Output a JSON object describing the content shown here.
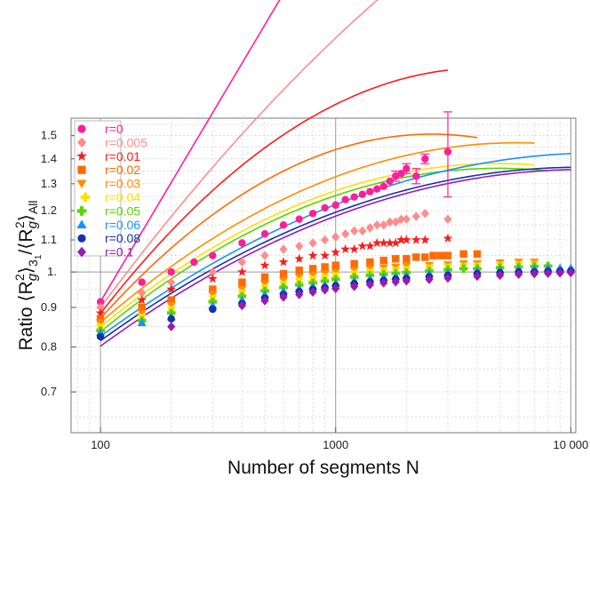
{
  "chart_data": {
    "type": "scatter",
    "title": "",
    "xlabel": "Number of segments N",
    "ylabel": {
      "prefix": "Ratio ⟨R",
      "g1": "g",
      "sup1": "2",
      "mid1": "⟩",
      "sub31": "3",
      "sub31b": "1",
      "mid2": "/⟨R",
      "g2": "g",
      "sup2": "2",
      "mid3": "⟩",
      "suball": "All"
    },
    "x_scale": "log",
    "y_scale": "log",
    "xlim": [
      75,
      10500
    ],
    "ylim": [
      0.62,
      1.58
    ],
    "x_ticks": [
      {
        "value": 100,
        "label": "100"
      },
      {
        "value": 1000,
        "label": "1000"
      },
      {
        "value": 10000,
        "label": "10 000"
      }
    ],
    "y_ticks": [
      {
        "value": 0.7,
        "label": "0.7"
      },
      {
        "value": 0.8,
        "label": "0.8"
      },
      {
        "value": 0.9,
        "label": "0.9"
      },
      {
        "value": 1.0,
        "label": "1."
      },
      {
        "value": 1.1,
        "label": "1.1"
      },
      {
        "value": 1.2,
        "label": "1.2"
      },
      {
        "value": 1.3,
        "label": "1.3"
      },
      {
        "value": 1.4,
        "label": "1.4"
      },
      {
        "value": 1.5,
        "label": "1.5"
      }
    ],
    "grid": true,
    "legend_position": "top-left",
    "series": [
      {
        "name": "r=0",
        "color": "#ff1e9a",
        "marker": "circle",
        "N_max": 3000,
        "fit": {
          "a": 0.9155,
          "b": 0.5115,
          "c": 0.0
        },
        "points": [
          [
            100,
            0.915
          ],
          [
            150,
            0.97
          ],
          [
            200,
            1.0
          ],
          [
            250,
            1.03
          ],
          [
            300,
            1.05
          ],
          [
            400,
            1.09
          ],
          [
            500,
            1.12
          ],
          [
            600,
            1.15
          ],
          [
            700,
            1.17
          ],
          [
            800,
            1.19
          ],
          [
            900,
            1.21
          ],
          [
            1000,
            1.22
          ],
          [
            1100,
            1.24
          ],
          [
            1200,
            1.25
          ],
          [
            1300,
            1.26
          ],
          [
            1400,
            1.27
          ],
          [
            1500,
            1.28
          ],
          [
            1600,
            1.29
          ],
          [
            1700,
            1.31
          ],
          [
            1800,
            1.33
          ],
          [
            1900,
            1.34
          ],
          [
            2000,
            1.36
          ],
          [
            2200,
            1.33
          ],
          [
            2400,
            1.4
          ],
          [
            3000,
            1.43
          ]
        ],
        "errors": [
          [
            1800,
            0.02
          ],
          [
            2000,
            0.02
          ],
          [
            2200,
            0.03
          ],
          [
            2400,
            0.02
          ],
          [
            3000,
            0.18
          ]
        ]
      },
      {
        "name": "r=0.005",
        "color": "#ff8c8c",
        "marker": "diamond",
        "N_max": 3000,
        "fit": {
          "a": 0.9,
          "b": 0.408,
          "c": -0.06
        },
        "points": [
          [
            100,
            0.9
          ],
          [
            150,
            0.94
          ],
          [
            200,
            0.97
          ],
          [
            300,
            1.0
          ],
          [
            400,
            1.03
          ],
          [
            500,
            1.05
          ],
          [
            600,
            1.07
          ],
          [
            700,
            1.08
          ],
          [
            800,
            1.09
          ],
          [
            900,
            1.1
          ],
          [
            1000,
            1.11
          ],
          [
            1100,
            1.12
          ],
          [
            1200,
            1.13
          ],
          [
            1300,
            1.13
          ],
          [
            1400,
            1.14
          ],
          [
            1500,
            1.15
          ],
          [
            1600,
            1.15
          ],
          [
            1700,
            1.16
          ],
          [
            1800,
            1.16
          ],
          [
            1900,
            1.17
          ],
          [
            2000,
            1.17
          ],
          [
            2200,
            1.18
          ],
          [
            2400,
            1.19
          ],
          [
            3000,
            1.17
          ]
        ]
      },
      {
        "name": "r=0.01",
        "color": "#ff1a1a",
        "marker": "star",
        "N_max": 3000,
        "fit": {
          "a": 0.884,
          "b": 0.39,
          "c": -0.12
        },
        "points": [
          [
            100,
            0.885
          ],
          [
            150,
            0.92
          ],
          [
            200,
            0.95
          ],
          [
            300,
            0.98
          ],
          [
            400,
            1.0
          ],
          [
            500,
            1.02
          ],
          [
            600,
            1.03
          ],
          [
            700,
            1.04
          ],
          [
            800,
            1.05
          ],
          [
            900,
            1.05
          ],
          [
            1000,
            1.06
          ],
          [
            1100,
            1.07
          ],
          [
            1200,
            1.07
          ],
          [
            1300,
            1.08
          ],
          [
            1400,
            1.08
          ],
          [
            1500,
            1.09
          ],
          [
            1600,
            1.09
          ],
          [
            1700,
            1.09
          ],
          [
            1800,
            1.09
          ],
          [
            1900,
            1.1
          ],
          [
            2000,
            1.1
          ],
          [
            2200,
            1.1
          ],
          [
            2400,
            1.1
          ],
          [
            3000,
            1.105
          ]
        ]
      },
      {
        "name": "r=0.02",
        "color": "#ff6a00",
        "marker": "square",
        "N_max": 4000,
        "fit": {
          "a": 0.871,
          "b": 0.338,
          "c": -0.12
        },
        "points": [
          [
            100,
            0.87
          ],
          [
            150,
            0.9
          ],
          [
            200,
            0.92
          ],
          [
            300,
            0.95
          ],
          [
            400,
            0.97
          ],
          [
            500,
            0.985
          ],
          [
            600,
            0.995
          ],
          [
            700,
            1.005
          ],
          [
            800,
            1.01
          ],
          [
            900,
            1.015
          ],
          [
            1000,
            1.02
          ],
          [
            1200,
            1.025
          ],
          [
            1400,
            1.03
          ],
          [
            1600,
            1.035
          ],
          [
            1800,
            1.04
          ],
          [
            2000,
            1.04
          ],
          [
            2200,
            1.045
          ],
          [
            2400,
            1.045
          ],
          [
            2600,
            1.05
          ],
          [
            2800,
            1.05
          ],
          [
            3000,
            1.05
          ],
          [
            3500,
            1.055
          ],
          [
            4000,
            1.055
          ]
        ]
      },
      {
        "name": "r=0.03",
        "color": "#ff8c00",
        "marker": "triangle-down",
        "N_max": 7000,
        "fit": {
          "a": 0.861,
          "b": 0.262,
          "c": -0.074
        },
        "points": [
          [
            100,
            0.86
          ],
          [
            150,
            0.885
          ],
          [
            200,
            0.905
          ],
          [
            300,
            0.935
          ],
          [
            400,
            0.95
          ],
          [
            500,
            0.965
          ],
          [
            600,
            0.975
          ],
          [
            700,
            0.985
          ],
          [
            800,
            0.99
          ],
          [
            900,
            0.995
          ],
          [
            1000,
            1.0
          ],
          [
            1200,
            1.005
          ],
          [
            1400,
            1.01
          ],
          [
            1600,
            1.012
          ],
          [
            1800,
            1.015
          ],
          [
            2000,
            1.018
          ],
          [
            2500,
            1.02
          ],
          [
            3000,
            1.022
          ],
          [
            3500,
            1.025
          ],
          [
            4000,
            1.025
          ],
          [
            5000,
            1.028
          ],
          [
            6000,
            1.03
          ],
          [
            7000,
            1.03
          ]
        ]
      },
      {
        "name": "r=0.04",
        "color": "#ffe000",
        "marker": "cross",
        "N_max": 7000,
        "fit": {
          "a": 0.849,
          "b": 0.25,
          "c": -0.074
        },
        "points": [
          [
            100,
            0.85
          ],
          [
            150,
            0.875
          ],
          [
            200,
            0.895
          ],
          [
            300,
            0.925
          ],
          [
            400,
            0.94
          ],
          [
            500,
            0.955
          ],
          [
            600,
            0.965
          ],
          [
            700,
            0.975
          ],
          [
            800,
            0.98
          ],
          [
            900,
            0.985
          ],
          [
            1000,
            0.99
          ],
          [
            1200,
            0.995
          ],
          [
            1400,
            1.0
          ],
          [
            1600,
            1.003
          ],
          [
            1800,
            1.005
          ],
          [
            2000,
            1.008
          ],
          [
            2500,
            1.012
          ],
          [
            3000,
            1.015
          ],
          [
            3500,
            1.017
          ],
          [
            4000,
            1.018
          ],
          [
            5000,
            1.02
          ],
          [
            6000,
            1.022
          ],
          [
            7000,
            1.022
          ]
        ]
      },
      {
        "name": "r=0.05",
        "color": "#5ad400",
        "marker": "plus",
        "N_max": 8000,
        "fit": {
          "a": 0.837,
          "b": 0.25,
          "c": -0.074
        },
        "points": [
          [
            100,
            0.84
          ],
          [
            150,
            0.865
          ],
          [
            200,
            0.885
          ],
          [
            300,
            0.915
          ],
          [
            400,
            0.93
          ],
          [
            500,
            0.945
          ],
          [
            600,
            0.955
          ],
          [
            700,
            0.962
          ],
          [
            800,
            0.968
          ],
          [
            900,
            0.973
          ],
          [
            1000,
            0.978
          ],
          [
            1200,
            0.985
          ],
          [
            1400,
            0.99
          ],
          [
            1600,
            0.993
          ],
          [
            1800,
            0.996
          ],
          [
            2000,
            0.998
          ],
          [
            2500,
            1.003
          ],
          [
            3000,
            1.007
          ],
          [
            3500,
            1.01
          ],
          [
            4000,
            1.01
          ],
          [
            5000,
            1.013
          ],
          [
            6000,
            1.015
          ],
          [
            7000,
            1.017
          ],
          [
            8000,
            1.018
          ]
        ]
      },
      {
        "name": "r=0.06",
        "color": "#1a90ff",
        "marker": "triangle-up",
        "N_max": 10000,
        "fit": {
          "a": 0.826,
          "b": 0.222,
          "c": -0.052
        },
        "points": [
          [
            100,
            0.835
          ],
          [
            150,
            0.86
          ],
          [
            200,
            0.875
          ],
          [
            300,
            0.905
          ],
          [
            400,
            0.92
          ],
          [
            500,
            0.935
          ],
          [
            600,
            0.945
          ],
          [
            700,
            0.952
          ],
          [
            800,
            0.958
          ],
          [
            900,
            0.962
          ],
          [
            1000,
            0.967
          ],
          [
            1200,
            0.974
          ],
          [
            1400,
            0.98
          ],
          [
            1600,
            0.984
          ],
          [
            1800,
            0.987
          ],
          [
            2000,
            0.99
          ],
          [
            2500,
            0.995
          ],
          [
            3000,
            0.998
          ],
          [
            4000,
            1.003
          ],
          [
            5000,
            1.006
          ],
          [
            6000,
            1.008
          ],
          [
            7000,
            1.01
          ],
          [
            8000,
            1.012
          ],
          [
            9000,
            1.012
          ],
          [
            10000,
            1.012
          ]
        ]
      },
      {
        "name": "r=0.08",
        "color": "#1432a8",
        "marker": "circle",
        "N_max": 10000,
        "fit": {
          "a": 0.815,
          "b": 0.22,
          "c": -0.054
        },
        "points": [
          [
            100,
            0.825
          ],
          [
            200,
            0.87
          ],
          [
            300,
            0.895
          ],
          [
            400,
            0.91
          ],
          [
            500,
            0.925
          ],
          [
            600,
            0.935
          ],
          [
            700,
            0.943
          ],
          [
            800,
            0.95
          ],
          [
            900,
            0.955
          ],
          [
            1000,
            0.96
          ],
          [
            1200,
            0.966
          ],
          [
            1400,
            0.971
          ],
          [
            1600,
            0.975
          ],
          [
            1800,
            0.979
          ],
          [
            2000,
            0.981
          ],
          [
            2500,
            0.986
          ],
          [
            3000,
            0.99
          ],
          [
            4000,
            0.995
          ],
          [
            5000,
            0.998
          ],
          [
            6000,
            1.0
          ],
          [
            7000,
            1.0
          ],
          [
            8000,
            1.002
          ],
          [
            9000,
            1.003
          ],
          [
            10000,
            1.003
          ]
        ]
      },
      {
        "name": "r=0.1",
        "color": "#9a1ab4",
        "marker": "diamond",
        "N_max": 10000,
        "fit": {
          "a": 0.802,
          "b": 0.222,
          "c": -0.054
        },
        "points": [
          [
            200,
            0.85
          ],
          [
            400,
            0.905
          ],
          [
            500,
            0.918
          ],
          [
            600,
            0.928
          ],
          [
            700,
            0.935
          ],
          [
            800,
            0.942
          ],
          [
            900,
            0.948
          ],
          [
            1000,
            0.952
          ],
          [
            1200,
            0.958
          ],
          [
            1400,
            0.963
          ],
          [
            1600,
            0.968
          ],
          [
            1800,
            0.971
          ],
          [
            2000,
            0.974
          ],
          [
            2500,
            0.978
          ],
          [
            3000,
            0.982
          ],
          [
            4000,
            0.987
          ],
          [
            5000,
            0.99
          ],
          [
            6000,
            0.993
          ],
          [
            7000,
            0.995
          ],
          [
            8000,
            0.996
          ],
          [
            9000,
            0.997
          ],
          [
            10000,
            0.998
          ]
        ]
      }
    ]
  }
}
